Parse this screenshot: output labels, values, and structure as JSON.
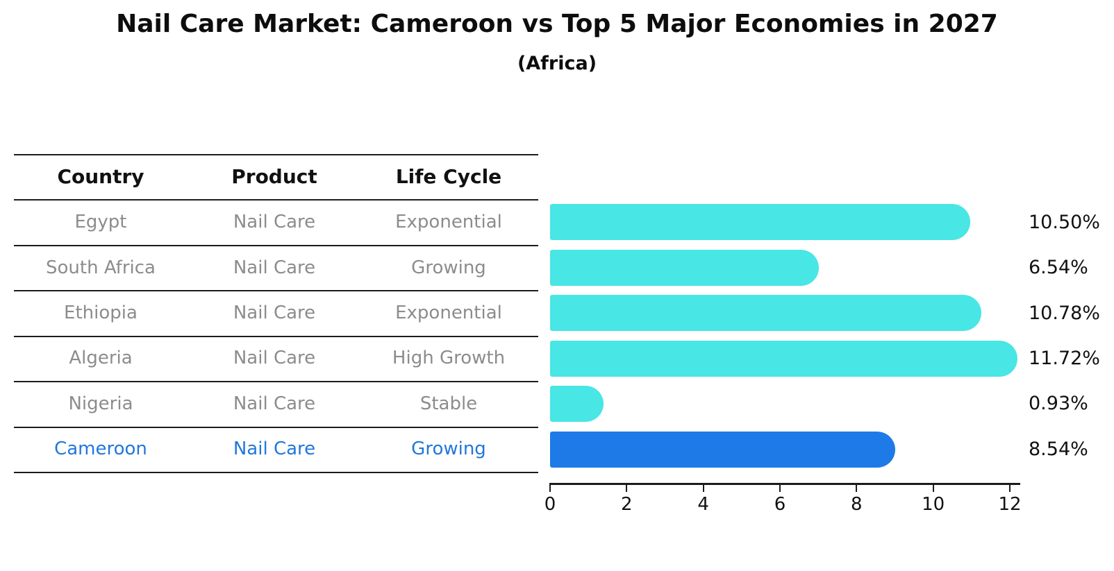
{
  "title": "Nail Care Market: Cameroon vs Top 5 Major Economies in 2027",
  "subtitle": "(Africa)",
  "table": {
    "headers": [
      "Country",
      "Product",
      "Life Cycle"
    ],
    "rows": [
      {
        "country": "Egypt",
        "product": "Nail Care",
        "life_cycle": "Exponential",
        "highlighted": false
      },
      {
        "country": "South Africa",
        "product": "Nail Care",
        "life_cycle": "Growing",
        "highlighted": false
      },
      {
        "country": "Ethiopia",
        "product": "Nail Care",
        "life_cycle": "Exponential",
        "highlighted": false
      },
      {
        "country": "Algeria",
        "product": "Nail Care",
        "life_cycle": "High Growth",
        "highlighted": false
      },
      {
        "country": "Nigeria",
        "product": "Nail Care",
        "life_cycle": "Stable",
        "highlighted": false
      },
      {
        "country": "Cameroon",
        "product": "Nail Care",
        "life_cycle": "Growing",
        "highlighted": true
      }
    ]
  },
  "chart_data": {
    "type": "bar",
    "orientation": "horizontal",
    "title": "Nail Care Market: Cameroon vs Top 5 Major Economies in 2027",
    "subtitle": "(Africa)",
    "categories": [
      "Egypt",
      "South Africa",
      "Ethiopia",
      "Algeria",
      "Nigeria",
      "Cameroon"
    ],
    "values": [
      10.5,
      6.54,
      10.78,
      11.72,
      0.93,
      8.54
    ],
    "value_labels": [
      "10.50%",
      "6.54%",
      "10.78%",
      "11.72%",
      "0.93%",
      "8.54%"
    ],
    "xlabel": "",
    "ylabel": "",
    "xlim": [
      0,
      12.3
    ],
    "xticks": [
      0,
      2,
      4,
      6,
      8,
      10,
      12
    ],
    "grid": false,
    "legend": null,
    "bar_color": "#48e6e4",
    "highlight_color": "#1e7ae6",
    "highlight_index": 5,
    "highlight_text_color": "#2277db",
    "text_color": "#8c8c8c",
    "line_color": "#1b1b1b"
  }
}
